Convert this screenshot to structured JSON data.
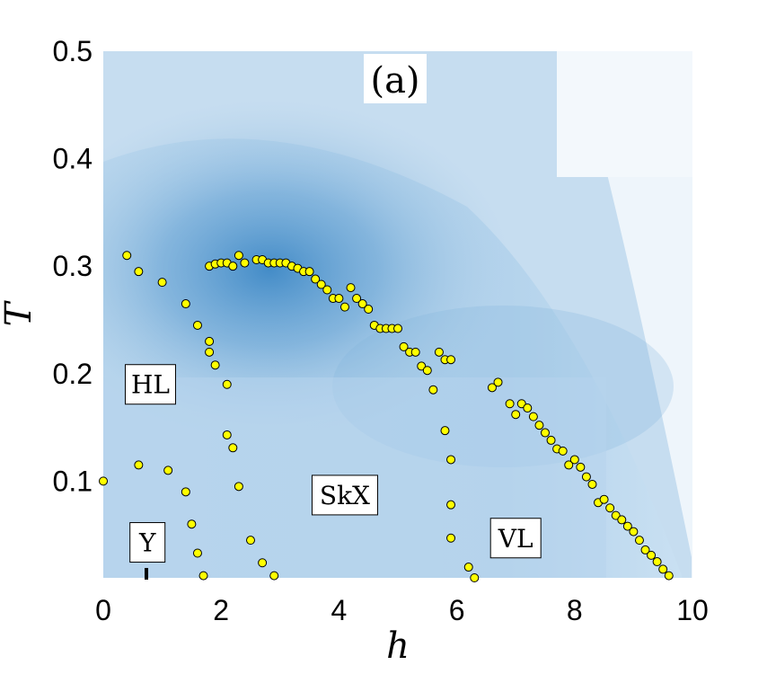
{
  "chart_data": {
    "type": "heatmap",
    "panel_label": "(a)",
    "xlabel": "h",
    "ylabel": "T",
    "xlim": [
      0,
      10
    ],
    "ylim": [
      0.01,
      0.5
    ],
    "xticks": [
      0,
      2,
      4,
      6,
      8,
      10
    ],
    "yticks": [
      0.1,
      0.2,
      0.3,
      0.4,
      0.5
    ],
    "colors": {
      "background_light": "#eef5fb",
      "heat_dark": "#2f7fc1",
      "heat_mid": "#a9cbe6",
      "marker_fill": "#ffff00",
      "marker_edge": "#000000"
    },
    "region_labels": [
      {
        "text": "HL",
        "h": 0.8,
        "T": 0.19
      },
      {
        "text": "SkX",
        "h": 4.1,
        "T": 0.087
      },
      {
        "text": "Y",
        "h": 0.75,
        "T": 0.043
      },
      {
        "text": "VL",
        "h": 7.0,
        "T": 0.047
      }
    ],
    "series": [
      {
        "marker": "circle",
        "points": [
          [
            0.0,
            0.1
          ],
          [
            0.4,
            0.31
          ],
          [
            0.6,
            0.295
          ],
          [
            1.0,
            0.285
          ],
          [
            1.4,
            0.265
          ],
          [
            1.6,
            0.245
          ],
          [
            1.8,
            0.23
          ],
          [
            1.8,
            0.22
          ],
          [
            1.9,
            0.208
          ],
          [
            2.1,
            0.19
          ],
          [
            2.1,
            0.143
          ],
          [
            2.2,
            0.131
          ],
          [
            2.3,
            0.095
          ],
          [
            0.6,
            0.115
          ],
          [
            1.1,
            0.11
          ],
          [
            1.4,
            0.09
          ],
          [
            1.5,
            0.06
          ],
          [
            1.6,
            0.033
          ],
          [
            1.7,
            0.012
          ],
          [
            2.5,
            0.045
          ],
          [
            2.7,
            0.024
          ],
          [
            2.9,
            0.012
          ],
          [
            1.8,
            0.3
          ],
          [
            1.9,
            0.302
          ],
          [
            2.0,
            0.303
          ],
          [
            2.1,
            0.303
          ],
          [
            2.2,
            0.3
          ],
          [
            2.3,
            0.31
          ],
          [
            2.4,
            0.303
          ],
          [
            2.6,
            0.306
          ],
          [
            2.7,
            0.306
          ],
          [
            2.8,
            0.303
          ],
          [
            2.9,
            0.303
          ],
          [
            3.0,
            0.303
          ],
          [
            3.1,
            0.303
          ],
          [
            3.2,
            0.3
          ],
          [
            3.3,
            0.298
          ],
          [
            3.4,
            0.295
          ],
          [
            3.5,
            0.295
          ],
          [
            3.6,
            0.288
          ],
          [
            3.7,
            0.283
          ],
          [
            3.8,
            0.278
          ],
          [
            3.9,
            0.27
          ],
          [
            4.0,
            0.27
          ],
          [
            4.1,
            0.262
          ],
          [
            4.2,
            0.28
          ],
          [
            4.3,
            0.27
          ],
          [
            4.4,
            0.265
          ],
          [
            4.5,
            0.26
          ],
          [
            4.6,
            0.245
          ],
          [
            4.7,
            0.242
          ],
          [
            4.8,
            0.242
          ],
          [
            4.9,
            0.242
          ],
          [
            5.0,
            0.242
          ],
          [
            5.1,
            0.225
          ],
          [
            5.2,
            0.22
          ],
          [
            5.3,
            0.22
          ],
          [
            5.4,
            0.207
          ],
          [
            5.5,
            0.203
          ],
          [
            5.6,
            0.185
          ],
          [
            5.7,
            0.22
          ],
          [
            5.8,
            0.213
          ],
          [
            5.9,
            0.213
          ],
          [
            5.8,
            0.147
          ],
          [
            5.9,
            0.12
          ],
          [
            5.9,
            0.078
          ],
          [
            5.9,
            0.047
          ],
          [
            6.2,
            0.02
          ],
          [
            6.3,
            0.01
          ],
          [
            6.6,
            0.187
          ],
          [
            6.7,
            0.192
          ],
          [
            6.9,
            0.172
          ],
          [
            7.0,
            0.162
          ],
          [
            7.1,
            0.172
          ],
          [
            7.2,
            0.168
          ],
          [
            7.3,
            0.16
          ],
          [
            7.4,
            0.152
          ],
          [
            7.5,
            0.145
          ],
          [
            7.6,
            0.138
          ],
          [
            7.7,
            0.13
          ],
          [
            7.8,
            0.128
          ],
          [
            7.9,
            0.115
          ],
          [
            8.0,
            0.12
          ],
          [
            8.1,
            0.113
          ],
          [
            8.2,
            0.104
          ],
          [
            8.3,
            0.097
          ],
          [
            8.4,
            0.08
          ],
          [
            8.5,
            0.083
          ],
          [
            8.6,
            0.075
          ],
          [
            8.7,
            0.068
          ],
          [
            8.8,
            0.064
          ],
          [
            8.9,
            0.058
          ],
          [
            9.0,
            0.053
          ],
          [
            9.1,
            0.045
          ],
          [
            9.2,
            0.036
          ],
          [
            9.3,
            0.031
          ],
          [
            9.4,
            0.025
          ],
          [
            9.5,
            0.018
          ],
          [
            9.6,
            0.012
          ]
        ]
      }
    ]
  }
}
